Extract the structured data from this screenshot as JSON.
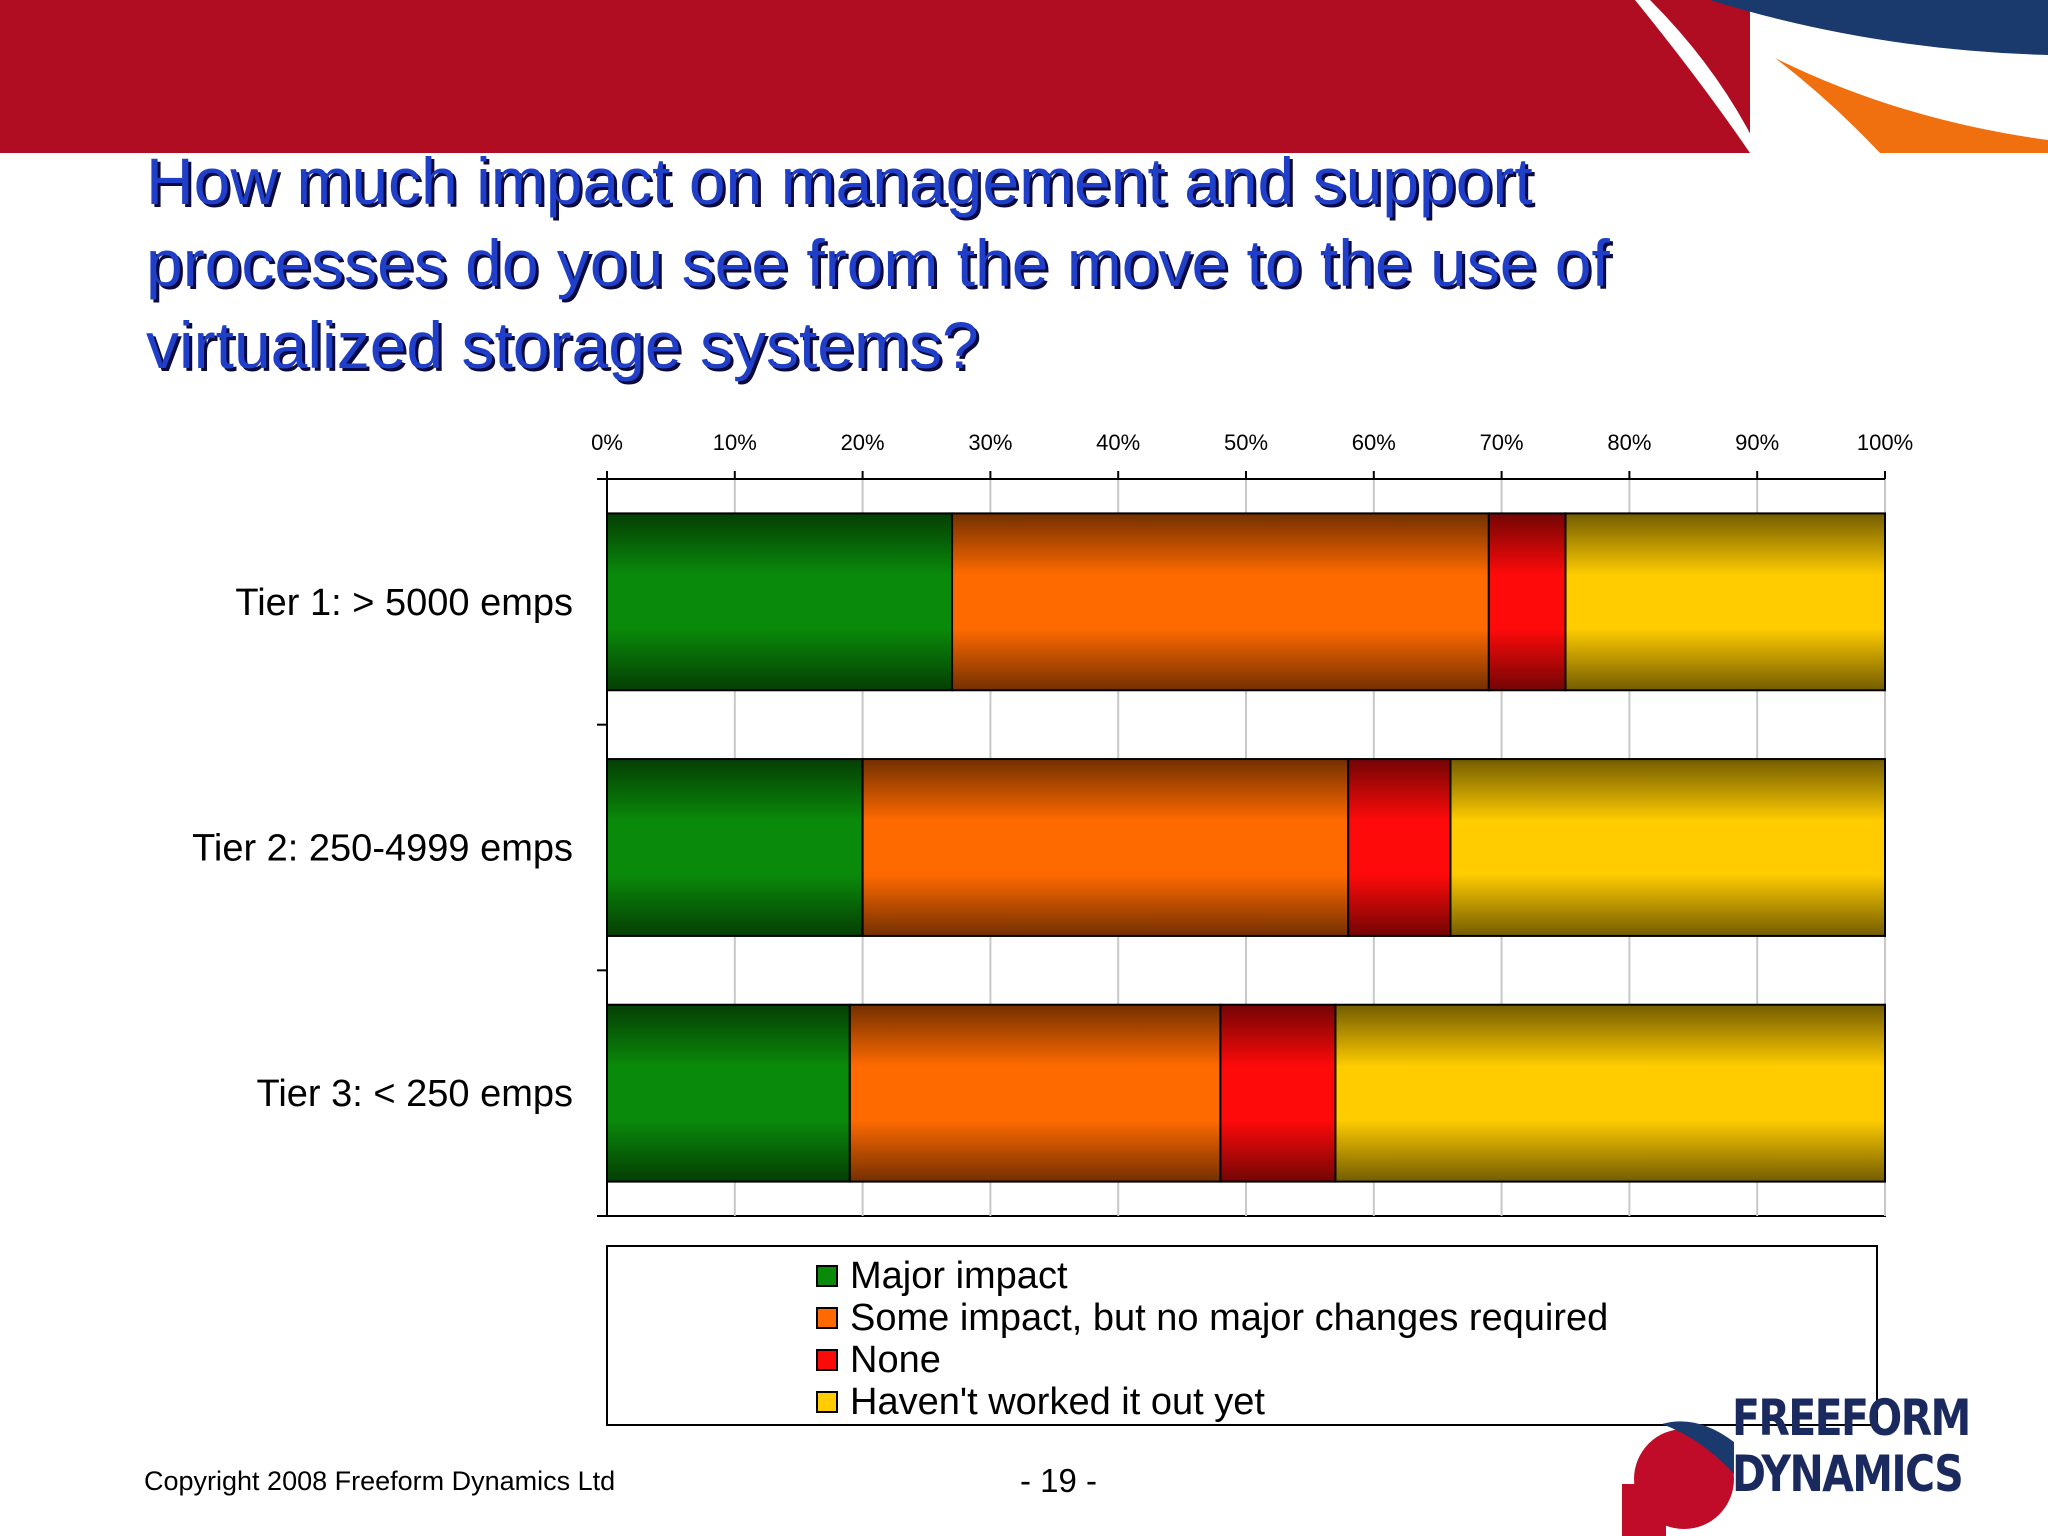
{
  "title_lines": [
    "How much impact on management and support",
    "processes do you see from the move to the use of",
    "virtualized storage systems?"
  ],
  "chart_data": {
    "type": "bar",
    "orientation": "horizontal",
    "stacked": "percent",
    "title": "",
    "xlabel": "",
    "ylabel": "",
    "xlim": [
      0,
      100
    ],
    "x_ticks": [
      "0%",
      "10%",
      "20%",
      "30%",
      "40%",
      "50%",
      "60%",
      "70%",
      "80%",
      "90%",
      "100%"
    ],
    "x_axis_position": "top",
    "grid": true,
    "categories": [
      "Tier 1: > 5000 emps",
      "Tier 2: 250-4999 emps",
      "Tier 3: < 250 emps"
    ],
    "series": [
      {
        "name": "Major impact",
        "color": "#0a8a0a",
        "values": [
          27,
          20,
          19
        ]
      },
      {
        "name": "Some impact, but no major changes required",
        "color": "#ff6a00",
        "values": [
          42,
          38,
          29
        ]
      },
      {
        "name": "None",
        "color": "#ff0a0a",
        "values": [
          6,
          8,
          9
        ]
      },
      {
        "name": "Haven't worked it out yet",
        "color": "#ffcc00",
        "values": [
          25,
          34,
          43
        ]
      }
    ],
    "legend_position": "bottom"
  },
  "footer": {
    "copyright": "Copyright 2008 Freeform Dynamics Ltd",
    "page_number": "- 19 -"
  },
  "logo": {
    "line1": "FREEFORM",
    "line2": "DYNAMICS"
  },
  "colors": {
    "banner_red": "#b00c22",
    "banner_navy": "#1a3a6e",
    "banner_orange": "#f07010",
    "title_blue": "#1f3fc8"
  }
}
